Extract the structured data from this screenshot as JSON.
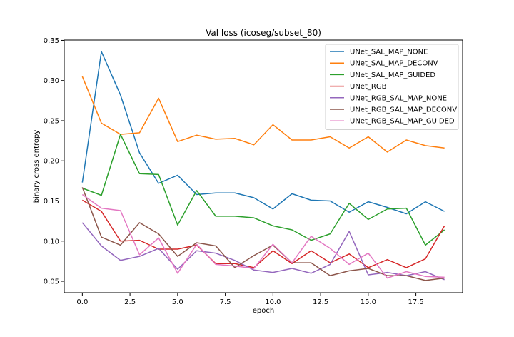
{
  "chart_data": {
    "type": "line",
    "title": "Val loss (icoseg/subset_80)",
    "xlabel": "epoch",
    "ylabel": "binary cross entropy",
    "xlim": [
      -0.95,
      19.95
    ],
    "ylim": [
      0.0358,
      0.3504
    ],
    "xticks": [
      0.0,
      2.5,
      5.0,
      7.5,
      10.0,
      12.5,
      15.0,
      17.5
    ],
    "xtick_labels": [
      "0.0",
      "2.5",
      "5.0",
      "7.5",
      "10.0",
      "12.5",
      "15.0",
      "17.5"
    ],
    "yticks": [
      0.05,
      0.1,
      0.15,
      0.2,
      0.25,
      0.3,
      0.35
    ],
    "ytick_labels": [
      "0.05",
      "0.10",
      "0.15",
      "0.20",
      "0.25",
      "0.30",
      "0.35"
    ],
    "grid": false,
    "legend_position": "top-right",
    "x": [
      0,
      1,
      2,
      3,
      4,
      5,
      6,
      7,
      8,
      9,
      10,
      11,
      12,
      13,
      14,
      15,
      16,
      17,
      18,
      19
    ],
    "series": [
      {
        "name": "UNet_SAL_MAP_NONE",
        "color": "#1f77b4",
        "values": [
          0.173,
          0.336,
          0.282,
          0.21,
          0.172,
          0.182,
          0.158,
          0.16,
          0.16,
          0.154,
          0.14,
          0.159,
          0.151,
          0.15,
          0.136,
          0.149,
          0.142,
          0.134,
          0.149,
          0.137
        ]
      },
      {
        "name": "UNet_SAL_MAP_DECONV",
        "color": "#ff7f0e",
        "values": [
          0.305,
          0.247,
          0.233,
          0.235,
          0.278,
          0.224,
          0.232,
          0.227,
          0.228,
          0.22,
          0.245,
          0.226,
          0.226,
          0.23,
          0.216,
          0.23,
          0.211,
          0.226,
          0.219,
          0.216
        ]
      },
      {
        "name": "UNet_SAL_MAP_GUIDED",
        "color": "#2ca02c",
        "values": [
          0.166,
          0.157,
          0.233,
          0.184,
          0.183,
          0.12,
          0.163,
          0.131,
          0.131,
          0.129,
          0.119,
          0.114,
          0.101,
          0.109,
          0.147,
          0.127,
          0.14,
          0.141,
          0.095,
          0.114
        ]
      },
      {
        "name": "UNet_RGB",
        "color": "#d62728",
        "values": [
          0.151,
          0.137,
          0.1,
          0.101,
          0.09,
          0.09,
          0.095,
          0.072,
          0.072,
          0.067,
          0.088,
          0.072,
          0.088,
          0.073,
          0.084,
          0.067,
          0.077,
          0.067,
          0.078,
          0.119
        ]
      },
      {
        "name": "UNet_RGB_SAL_MAP_NONE",
        "color": "#9467bd",
        "values": [
          0.123,
          0.094,
          0.076,
          0.081,
          0.091,
          0.065,
          0.088,
          0.085,
          0.076,
          0.064,
          0.061,
          0.066,
          0.06,
          0.071,
          0.112,
          0.058,
          0.061,
          0.057,
          0.062,
          0.052
        ]
      },
      {
        "name": "UNet_RGB_SAL_MAP_DECONV",
        "color": "#8c564b",
        "values": [
          0.167,
          0.105,
          0.095,
          0.123,
          0.109,
          0.081,
          0.098,
          0.094,
          0.067,
          0.082,
          0.095,
          0.073,
          0.073,
          0.057,
          0.063,
          0.066,
          0.057,
          0.057,
          0.051,
          0.054
        ]
      },
      {
        "name": "UNet_RGB_SAL_MAP_GUIDED",
        "color": "#e377c2",
        "values": [
          0.158,
          0.141,
          0.138,
          0.083,
          0.104,
          0.06,
          0.096,
          0.071,
          0.069,
          0.066,
          0.096,
          0.073,
          0.106,
          0.091,
          0.071,
          0.085,
          0.054,
          0.062,
          0.056,
          0.055
        ]
      }
    ]
  }
}
